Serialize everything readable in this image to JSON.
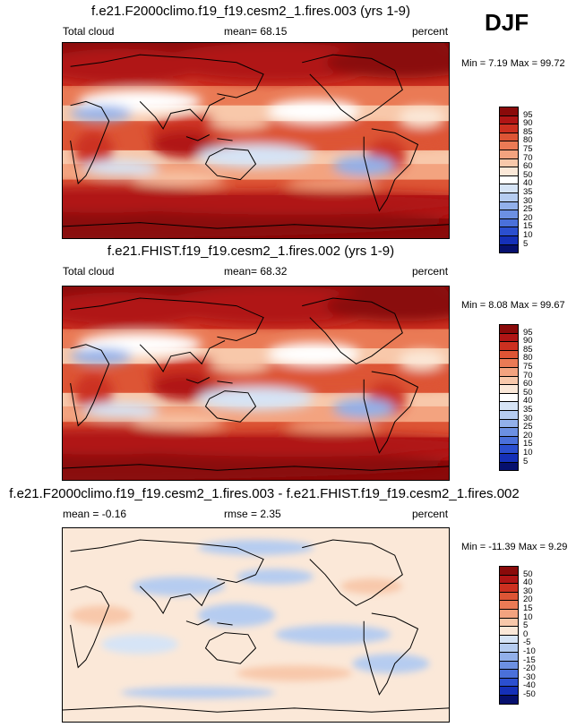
{
  "season": "DJF",
  "panels": [
    {
      "title": "f.e21.F2000climo.f19_f19.cesm2_1.fires.003 (yrs 1-9)",
      "left_label": "Total cloud",
      "mid_label": "mean=  68.15",
      "unit": "percent",
      "minmax": "Min =  7.19 Max =  99.72",
      "field": "abs"
    },
    {
      "title": "f.e21.FHIST.f19_f19.cesm2_1.fires.002 (yrs 1-9)",
      "left_label": "Total cloud",
      "mid_label": "mean=  68.32",
      "unit": "percent",
      "minmax": "Min =  8.08 Max =  99.67",
      "field": "abs"
    },
    {
      "title": "f.e21.F2000climo.f19_f19.cesm2_1.fires.003 - f.e21.FHIST.f19_f19.cesm2_1.fires.002",
      "left_label": "mean =  -0.16",
      "mid_label": "rmse =  2.35",
      "unit": "percent",
      "minmax": "Min = -11.39 Max =  9.29",
      "field": "diff"
    }
  ],
  "colorbars": {
    "abs": {
      "labels": [
        "95",
        "90",
        "85",
        "80",
        "75",
        "70",
        "60",
        "50",
        "40",
        "35",
        "30",
        "25",
        "20",
        "15",
        "10",
        "5"
      ],
      "colors": [
        "#8a0a0a",
        "#b01515",
        "#cc3020",
        "#dd5535",
        "#ea7a55",
        "#f3a37f",
        "#f8c8aa",
        "#fbe8d8",
        "#ffffff",
        "#d6e4f6",
        "#b5ccf0",
        "#92b0ea",
        "#6c90e2",
        "#4a70da",
        "#2b4fcf",
        "#1530b8",
        "#06106e"
      ]
    },
    "diff": {
      "labels": [
        "50",
        "40",
        "30",
        "20",
        "15",
        "10",
        "5",
        "0",
        "-5",
        "-10",
        "-15",
        "-20",
        "-30",
        "-40",
        "-50"
      ],
      "colors": [
        "#8a0a0a",
        "#b01515",
        "#cc3020",
        "#dd5535",
        "#ea7a55",
        "#f3a37f",
        "#f8c8aa",
        "#fbe8d8",
        "#d6e4f6",
        "#b5ccf0",
        "#92b0ea",
        "#6c90e2",
        "#4a70da",
        "#2b4fcf",
        "#1530b8",
        "#06106e"
      ]
    }
  },
  "chart_data": [
    {
      "type": "heatmap",
      "title": "f.e21.F2000climo.f19_f19.cesm2_1.fires.003 (yrs 1-9)",
      "variable": "Total cloud",
      "unit": "percent",
      "mean": 68.15,
      "min": 7.19,
      "max": 99.72,
      "contour_levels": [
        5,
        10,
        15,
        20,
        25,
        30,
        35,
        40,
        50,
        60,
        70,
        75,
        80,
        85,
        90,
        95
      ]
    },
    {
      "type": "heatmap",
      "title": "f.e21.FHIST.f19_f19.cesm2_1.fires.002 (yrs 1-9)",
      "variable": "Total cloud",
      "unit": "percent",
      "mean": 68.32,
      "min": 8.08,
      "max": 99.67,
      "contour_levels": [
        5,
        10,
        15,
        20,
        25,
        30,
        35,
        40,
        50,
        60,
        70,
        75,
        80,
        85,
        90,
        95
      ]
    },
    {
      "type": "heatmap",
      "title": "f.e21.F2000climo.f19_f19.cesm2_1.fires.003 - f.e21.FHIST.f19_f19.cesm2_1.fires.002",
      "unit": "percent",
      "mean": -0.16,
      "rmse": 2.35,
      "min": -11.39,
      "max": 9.29,
      "contour_levels": [
        -50,
        -40,
        -30,
        -20,
        -15,
        -10,
        -5,
        0,
        5,
        10,
        15,
        20,
        30,
        40,
        50
      ]
    }
  ]
}
